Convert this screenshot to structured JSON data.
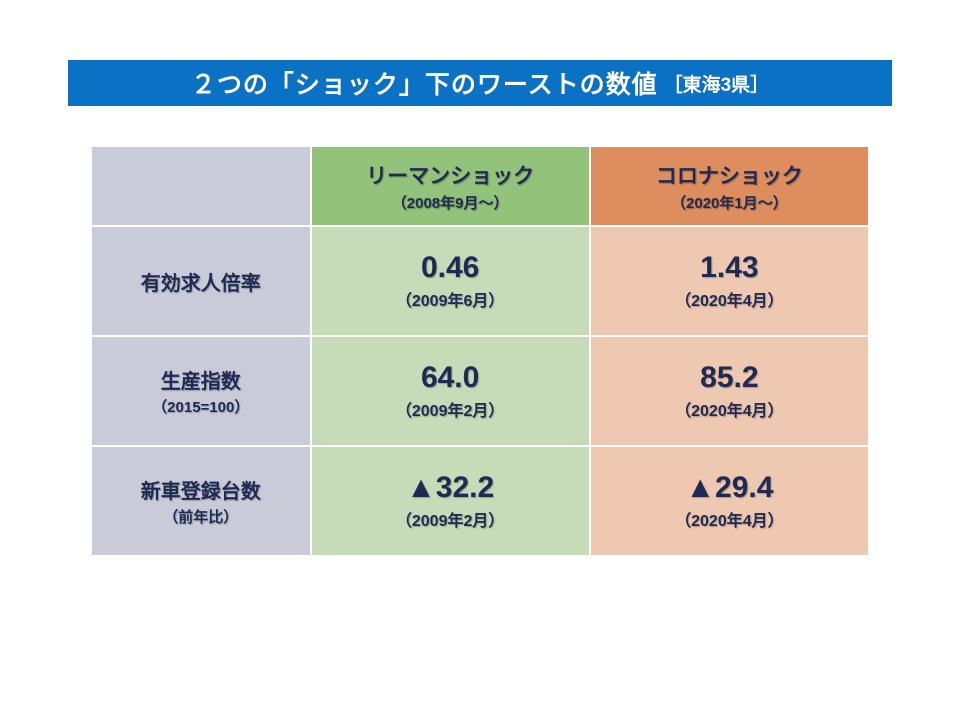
{
  "title": {
    "main": "２つの「ショック」下のワーストの数値",
    "sub": "［東海3県］",
    "bg": "#0a71c4",
    "color": "#ffffff"
  },
  "colors": {
    "label_bg": "#c9ccd8",
    "label_fg": "#1f2a54",
    "colA_header_bg": "#93c27a",
    "colA_header_fg": "#1f2a54",
    "colA_data_bg": "#c6dbb7",
    "colA_data_fg": "#1f2a54",
    "colB_header_bg": "#dd8d5e",
    "colB_header_fg": "#1f2a54",
    "colB_data_bg": "#eec8b0",
    "colB_data_fg": "#1f2a54"
  },
  "headers": {
    "a": {
      "title": "リーマンショック",
      "period": "（2008年9月～）"
    },
    "b": {
      "title": "コロナショック",
      "period": "（2020年1月～）"
    }
  },
  "rows": [
    {
      "label": "有効求人倍率",
      "label_sub": "",
      "a": {
        "value": "0.46",
        "date": "（2009年6月）"
      },
      "b": {
        "value": "1.43",
        "date": "（2020年4月）"
      }
    },
    {
      "label": "生産指数",
      "label_sub": "（2015=100）",
      "a": {
        "value": "64.0",
        "date": "（2009年2月）"
      },
      "b": {
        "value": "85.2",
        "date": "（2020年4月）"
      }
    },
    {
      "label": "新車登録台数",
      "label_sub": "（前年比）",
      "a": {
        "value": "▲32.2",
        "date": "（2009年2月）"
      },
      "b": {
        "value": "▲29.4",
        "date": "（2020年4月）"
      }
    }
  ]
}
